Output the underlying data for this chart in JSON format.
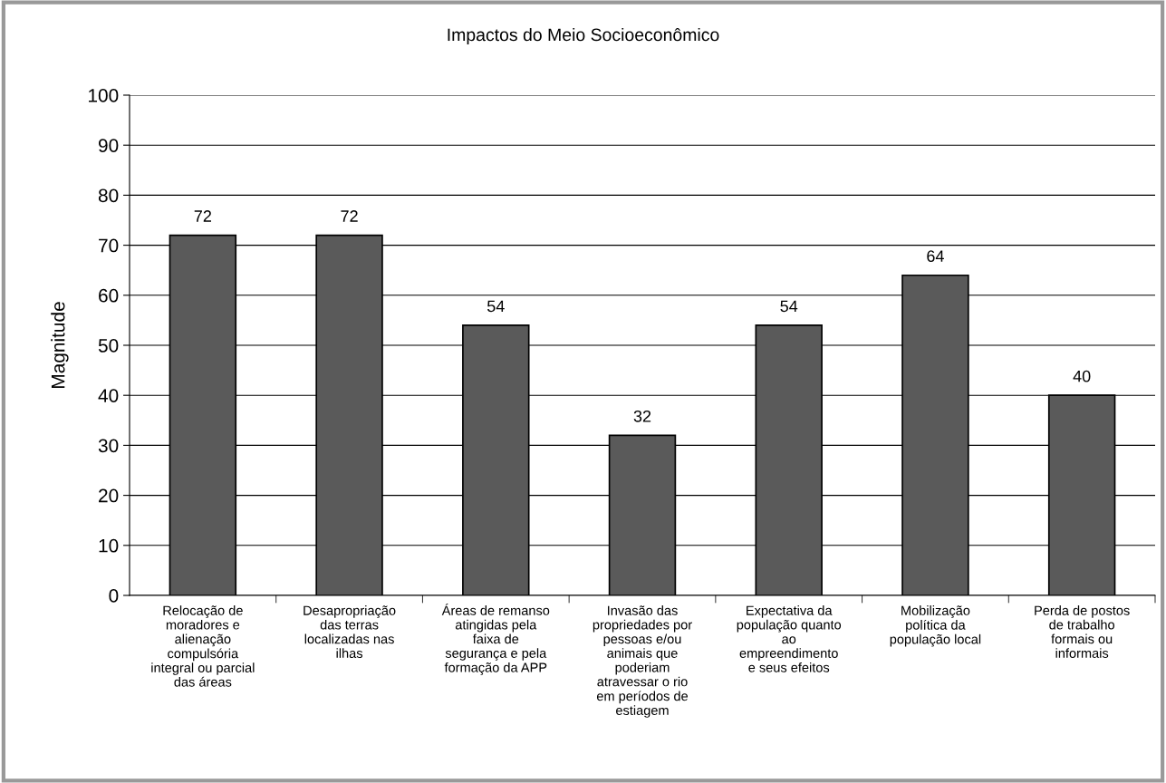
{
  "chart_data": {
    "type": "bar",
    "title": "Impactos do Meio Socioeconômico",
    "ylabel": "Magnitude",
    "categories": [
      "Relocação de\nmoradores e\nalienação\ncompulsória\nintegral ou parcial\ndas áreas",
      "Desapropriação\ndas terras\nlocalizadas nas\nilhas",
      "Áreas de remanso\natingidas pela\nfaixa de\nsegurança e pela\nformação da APP",
      "Invasão das\npropriedades por\npessoas e/ou\nanimais que\npoderiam\natravessar o rio\nem períodos de\nestiagem",
      "Expectativa da\npopulação quanto\nao\nempreendimento\ne seus efeitos",
      "Mobilização\npolítica da\npopulação local",
      "Perda de postos\nde trabalho\nformais ou\ninformais"
    ],
    "values": [
      72,
      72,
      54,
      32,
      54,
      64,
      40
    ],
    "color": "#5a5a5a",
    "ylim": [
      0,
      100
    ],
    "yticks": [
      0,
      10,
      20,
      30,
      40,
      50,
      60,
      70,
      80,
      90,
      100
    ],
    "grid": "y",
    "data_labels": true
  }
}
